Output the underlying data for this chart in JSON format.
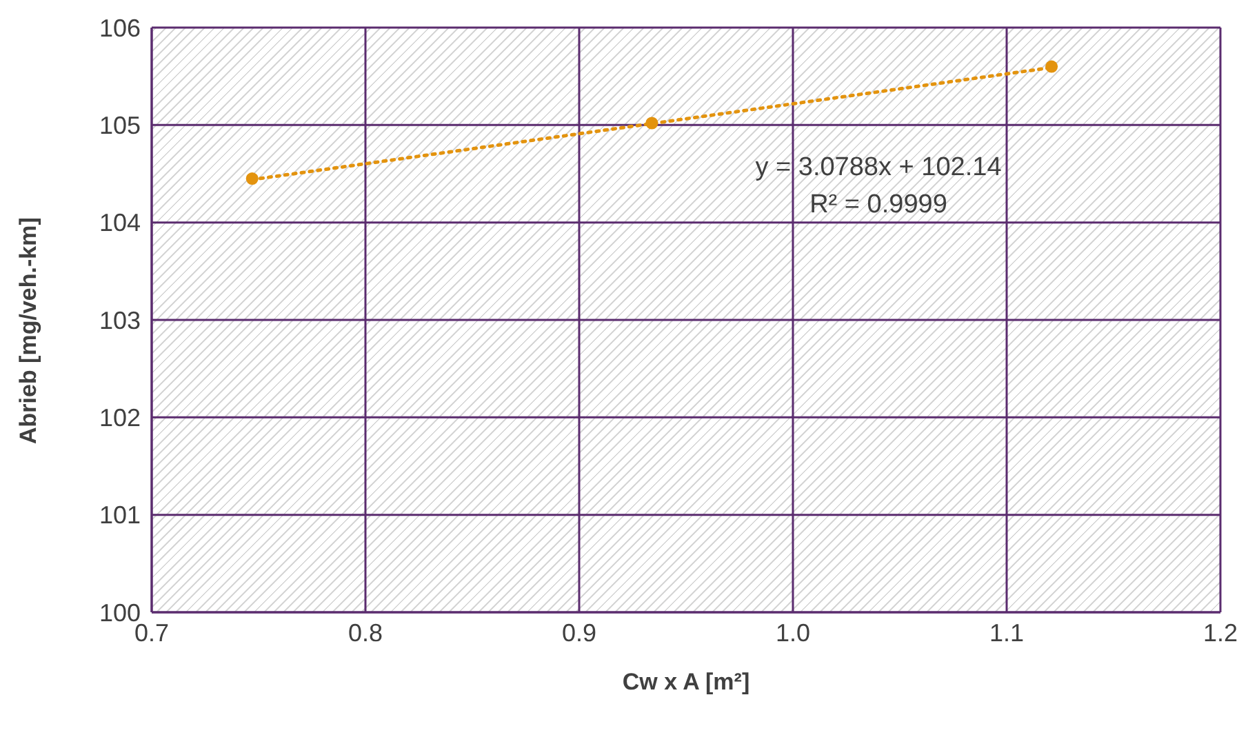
{
  "chart_data": {
    "type": "scatter",
    "xlabel": "Cw x A [m²]",
    "ylabel": "Abrieb [mg/veh.-km]",
    "x": [
      0.747,
      0.934,
      1.121
    ],
    "series": [
      {
        "color": "#e3930e",
        "values": [
          104.45,
          105.02,
          105.6
        ],
        "marker": "circle"
      },
      {
        "type": "line",
        "x": [
          0.747,
          1.121
        ],
        "color": "#e3930e",
        "values": [
          104.44,
          105.59
        ],
        "line_style": "dotted",
        "marker": "none"
      }
    ],
    "xlim": [
      0.7,
      1.2
    ],
    "xticks": [
      0.7,
      0.8,
      0.9,
      {
        "value": 1,
        "label": "1.0"
      },
      1.1,
      1.2
    ],
    "ylim": [
      100,
      106
    ],
    "yticks": [
      100,
      101,
      102,
      103,
      104,
      105,
      106
    ],
    "grid": true,
    "annotations": [
      "y = 3.0788x + 102.14",
      "R² = 0.9999"
    ]
  }
}
